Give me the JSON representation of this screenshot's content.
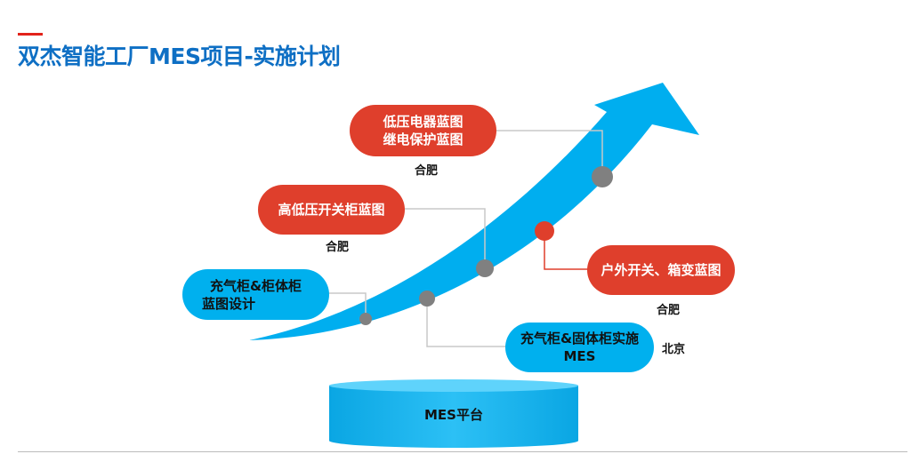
{
  "title": "双杰智能工厂MES项目-实施计划",
  "colors": {
    "title": "#0e6fc4",
    "red": "#df3f2c",
    "blue": "#00b0ee",
    "arrow": "#00aeef",
    "dot_gray": "#808080"
  },
  "milestones": [
    {
      "lines": [
        "低压电器蓝图",
        "继电保护蓝图"
      ],
      "location": "合肥",
      "color": "red"
    },
    {
      "lines": [
        "高低压开关柜蓝图"
      ],
      "location": "合肥",
      "color": "red"
    },
    {
      "lines": [
        "户外开关、箱变蓝图"
      ],
      "location": "合肥",
      "color": "red"
    },
    {
      "lines": [
        "充气柜&柜体柜",
        "蓝图设计"
      ],
      "location": "",
      "color": "blue"
    },
    {
      "lines": [
        "充气柜&固体柜实施",
        "MES"
      ],
      "location": "北京",
      "color": "blue"
    }
  ],
  "platform": "MES平台"
}
